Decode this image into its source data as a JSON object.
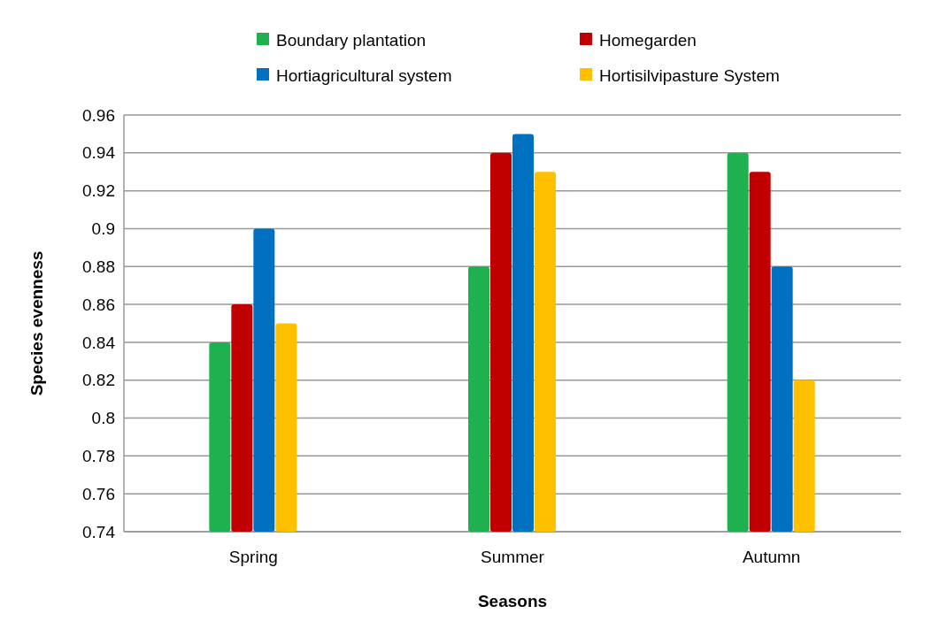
{
  "chart_data": {
    "type": "bar",
    "xlabel": "Seasons",
    "ylabel": "Species evenness",
    "categories": [
      "Spring",
      "Summer",
      "Autumn"
    ],
    "series": [
      {
        "name": "Boundary plantation",
        "color": "#1fb04f",
        "values": [
          0.84,
          0.88,
          0.94
        ]
      },
      {
        "name": "Homegarden",
        "color": "#c00000",
        "values": [
          0.86,
          0.94,
          0.93
        ]
      },
      {
        "name": "Hortiagricultural system",
        "color": "#0070c0",
        "values": [
          0.9,
          0.95,
          0.88
        ]
      },
      {
        "name": "Hortisilvipasture System",
        "color": "#ffc000",
        "values": [
          0.85,
          0.93,
          0.82
        ]
      }
    ],
    "ylim": [
      0.74,
      0.96
    ],
    "yticks": [
      0.74,
      0.76,
      0.78,
      0.8,
      0.82,
      0.84,
      0.86,
      0.88,
      0.9,
      0.92,
      0.94,
      0.96
    ],
    "grid": "y",
    "legend": "top"
  }
}
